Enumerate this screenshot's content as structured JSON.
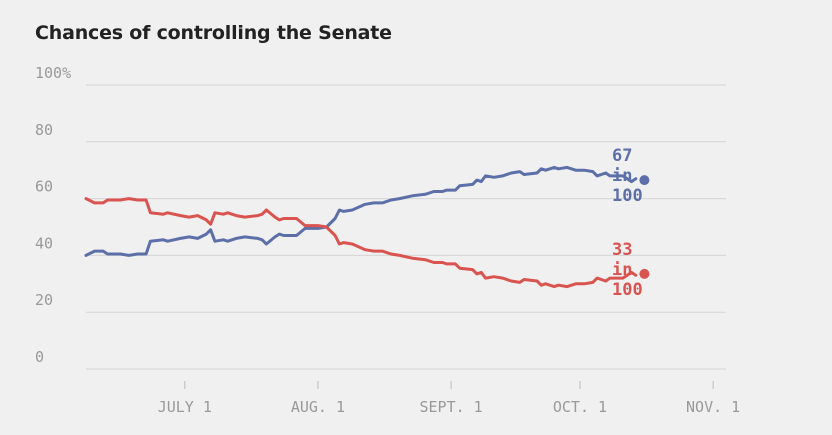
{
  "chart_data": {
    "type": "line",
    "title": "Chances of controlling the Senate",
    "ylim": [
      0,
      100
    ],
    "yticks": [
      {
        "value": 0,
        "label": "0"
      },
      {
        "value": 20,
        "label": "20"
      },
      {
        "value": 40,
        "label": "40"
      },
      {
        "value": 60,
        "label": "60"
      },
      {
        "value": 80,
        "label": "80"
      },
      {
        "value": 100,
        "label": "100%"
      }
    ],
    "x_range": [
      "2014-06-08",
      "2014-11-04"
    ],
    "xticks": [
      {
        "date": "2014-07-01",
        "label": "JULY 1"
      },
      {
        "date": "2014-08-01",
        "label": "AUG. 1"
      },
      {
        "date": "2014-09-01",
        "label": "SEPT. 1"
      },
      {
        "date": "2014-10-01",
        "label": "OCT. 1"
      },
      {
        "date": "2014-11-01",
        "label": "NOV. 1"
      }
    ],
    "grid": true,
    "series": [
      {
        "color": "#5c6fa8",
        "end_label": [
          "67",
          "in",
          "100"
        ],
        "points": [
          [
            "2014-06-08",
            40
          ],
          [
            "2014-06-10",
            41.5
          ],
          [
            "2014-06-12",
            41.5
          ],
          [
            "2014-06-13",
            40.5
          ],
          [
            "2014-06-16",
            40.5
          ],
          [
            "2014-06-18",
            40
          ],
          [
            "2014-06-20",
            40.5
          ],
          [
            "2014-06-22",
            40.5
          ],
          [
            "2014-06-23",
            45
          ],
          [
            "2014-06-26",
            45.5
          ],
          [
            "2014-06-27",
            45
          ],
          [
            "2014-06-30",
            46
          ],
          [
            "2014-07-02",
            46.5
          ],
          [
            "2014-07-04",
            46
          ],
          [
            "2014-07-06",
            47.5
          ],
          [
            "2014-07-07",
            49
          ],
          [
            "2014-07-08",
            45
          ],
          [
            "2014-07-10",
            45.5
          ],
          [
            "2014-07-11",
            45
          ],
          [
            "2014-07-13",
            46
          ],
          [
            "2014-07-15",
            46.5
          ],
          [
            "2014-07-18",
            46
          ],
          [
            "2014-07-19",
            45.5
          ],
          [
            "2014-07-20",
            44
          ],
          [
            "2014-07-22",
            46.5
          ],
          [
            "2014-07-23",
            47.5
          ],
          [
            "2014-07-24",
            47
          ],
          [
            "2014-07-27",
            47
          ],
          [
            "2014-07-29",
            49.5
          ],
          [
            "2014-08-01",
            49.5
          ],
          [
            "2014-08-03",
            50
          ],
          [
            "2014-08-05",
            53
          ],
          [
            "2014-08-06",
            56
          ],
          [
            "2014-08-07",
            55.5
          ],
          [
            "2014-08-09",
            56
          ],
          [
            "2014-08-12",
            58
          ],
          [
            "2014-08-14",
            58.5
          ],
          [
            "2014-08-16",
            58.5
          ],
          [
            "2014-08-18",
            59.5
          ],
          [
            "2014-08-20",
            60
          ],
          [
            "2014-08-23",
            61
          ],
          [
            "2014-08-26",
            61.5
          ],
          [
            "2014-08-28",
            62.5
          ],
          [
            "2014-08-30",
            62.5
          ],
          [
            "2014-08-31",
            63
          ],
          [
            "2014-09-02",
            63
          ],
          [
            "2014-09-03",
            64.5
          ],
          [
            "2014-09-06",
            65
          ],
          [
            "2014-09-07",
            66.5
          ],
          [
            "2014-09-08",
            66
          ],
          [
            "2014-09-09",
            68
          ],
          [
            "2014-09-11",
            67.5
          ],
          [
            "2014-09-13",
            68
          ],
          [
            "2014-09-15",
            69
          ],
          [
            "2014-09-17",
            69.5
          ],
          [
            "2014-09-18",
            68.5
          ],
          [
            "2014-09-21",
            69
          ],
          [
            "2014-09-22",
            70.5
          ],
          [
            "2014-09-23",
            70
          ],
          [
            "2014-09-25",
            71
          ],
          [
            "2014-09-26",
            70.5
          ],
          [
            "2014-09-28",
            71
          ],
          [
            "2014-09-30",
            70
          ],
          [
            "2014-10-02",
            70
          ],
          [
            "2014-10-04",
            69.5
          ],
          [
            "2014-10-05",
            68
          ],
          [
            "2014-10-07",
            69
          ],
          [
            "2014-10-08",
            68
          ],
          [
            "2014-10-11",
            68
          ],
          [
            "2014-10-13",
            66
          ],
          [
            "2014-10-14",
            67
          ]
        ],
        "last_point": [
          "2014-10-16",
          66.5
        ]
      },
      {
        "color": "#d9534f",
        "end_label": [
          "33",
          "in",
          "100"
        ],
        "points": [
          [
            "2014-06-08",
            60
          ],
          [
            "2014-06-10",
            58.5
          ],
          [
            "2014-06-12",
            58.5
          ],
          [
            "2014-06-13",
            59.5
          ],
          [
            "2014-06-16",
            59.5
          ],
          [
            "2014-06-18",
            60
          ],
          [
            "2014-06-20",
            59.5
          ],
          [
            "2014-06-22",
            59.5
          ],
          [
            "2014-06-23",
            55
          ],
          [
            "2014-06-26",
            54.5
          ],
          [
            "2014-06-27",
            55
          ],
          [
            "2014-06-30",
            54
          ],
          [
            "2014-07-02",
            53.5
          ],
          [
            "2014-07-04",
            54
          ],
          [
            "2014-07-06",
            52.5
          ],
          [
            "2014-07-07",
            51
          ],
          [
            "2014-07-08",
            55
          ],
          [
            "2014-07-10",
            54.5
          ],
          [
            "2014-07-11",
            55
          ],
          [
            "2014-07-13",
            54
          ],
          [
            "2014-07-15",
            53.5
          ],
          [
            "2014-07-18",
            54
          ],
          [
            "2014-07-19",
            54.5
          ],
          [
            "2014-07-20",
            56
          ],
          [
            "2014-07-22",
            53.5
          ],
          [
            "2014-07-23",
            52.5
          ],
          [
            "2014-07-24",
            53
          ],
          [
            "2014-07-27",
            53
          ],
          [
            "2014-07-29",
            50.5
          ],
          [
            "2014-08-01",
            50.5
          ],
          [
            "2014-08-03",
            50
          ],
          [
            "2014-08-05",
            47
          ],
          [
            "2014-08-06",
            44
          ],
          [
            "2014-08-07",
            44.5
          ],
          [
            "2014-08-09",
            44
          ],
          [
            "2014-08-12",
            42
          ],
          [
            "2014-08-14",
            41.5
          ],
          [
            "2014-08-16",
            41.5
          ],
          [
            "2014-08-18",
            40.5
          ],
          [
            "2014-08-20",
            40
          ],
          [
            "2014-08-23",
            39
          ],
          [
            "2014-08-26",
            38.5
          ],
          [
            "2014-08-28",
            37.5
          ],
          [
            "2014-08-30",
            37.5
          ],
          [
            "2014-08-31",
            37
          ],
          [
            "2014-09-02",
            37
          ],
          [
            "2014-09-03",
            35.5
          ],
          [
            "2014-09-06",
            35
          ],
          [
            "2014-09-07",
            33.5
          ],
          [
            "2014-09-08",
            34
          ],
          [
            "2014-09-09",
            32
          ],
          [
            "2014-09-11",
            32.5
          ],
          [
            "2014-09-13",
            32
          ],
          [
            "2014-09-15",
            31
          ],
          [
            "2014-09-17",
            30.5
          ],
          [
            "2014-09-18",
            31.5
          ],
          [
            "2014-09-21",
            31
          ],
          [
            "2014-09-22",
            29.5
          ],
          [
            "2014-09-23",
            30
          ],
          [
            "2014-09-25",
            29
          ],
          [
            "2014-09-26",
            29.5
          ],
          [
            "2014-09-28",
            29
          ],
          [
            "2014-09-30",
            30
          ],
          [
            "2014-10-02",
            30
          ],
          [
            "2014-10-04",
            30.5
          ],
          [
            "2014-10-05",
            32
          ],
          [
            "2014-10-07",
            31
          ],
          [
            "2014-10-08",
            32
          ],
          [
            "2014-10-11",
            32
          ],
          [
            "2014-10-13",
            34
          ],
          [
            "2014-10-14",
            33
          ]
        ],
        "last_point": [
          "2014-10-16",
          33.5
        ]
      }
    ]
  }
}
